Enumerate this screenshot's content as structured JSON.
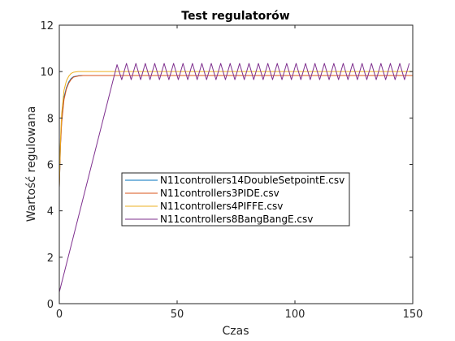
{
  "chart_data": {
    "type": "line",
    "title": "Test regulatorów",
    "xlabel": "Czas",
    "ylabel": "Wartość regulowana",
    "xlim": [
      0,
      150
    ],
    "ylim": [
      0,
      12
    ],
    "xticks": [
      "0",
      "50",
      "100",
      "150"
    ],
    "yticks": [
      "0",
      "2",
      "4",
      "6",
      "8",
      "10",
      "12"
    ],
    "grid": false,
    "legend_position": "center",
    "series": [
      {
        "name": "N11controllers14DoubleSetpointE.csv",
        "color": "#0072BD",
        "points": [
          [
            0,
            5.0
          ],
          [
            0.5,
            6.9
          ],
          [
            1,
            7.9
          ],
          [
            2,
            8.9
          ],
          [
            3,
            9.3
          ],
          [
            4,
            9.55
          ],
          [
            5,
            9.7
          ],
          [
            6,
            9.78
          ],
          [
            8,
            9.82
          ],
          [
            10,
            9.83
          ],
          [
            150,
            9.83
          ]
        ]
      },
      {
        "name": "N11controllers3PIDE.csv",
        "color": "#D95319",
        "points": [
          [
            0,
            5.0
          ],
          [
            0.5,
            6.8
          ],
          [
            1,
            7.8
          ],
          [
            2,
            8.8
          ],
          [
            3,
            9.25
          ],
          [
            4,
            9.5
          ],
          [
            5,
            9.66
          ],
          [
            6,
            9.76
          ],
          [
            8,
            9.81
          ],
          [
            10,
            9.83
          ],
          [
            150,
            9.83
          ]
        ]
      },
      {
        "name": "N11controllers4PIFFE.csv",
        "color": "#EDB120",
        "points": [
          [
            0,
            5.0
          ],
          [
            0.5,
            7.1
          ],
          [
            1,
            8.2
          ],
          [
            2,
            9.2
          ],
          [
            3,
            9.6
          ],
          [
            4,
            9.8
          ],
          [
            5,
            9.92
          ],
          [
            6,
            9.97
          ],
          [
            8,
            10.0
          ],
          [
            10,
            10.0
          ],
          [
            150,
            10.0
          ]
        ]
      },
      {
        "name": "N11controllers8BangBangE.csv",
        "color": "#7E2F8E",
        "ramp": [
          [
            0,
            0.5
          ],
          [
            24.5,
            10.3
          ]
        ],
        "oscillation": {
          "start": 24.5,
          "end": 150,
          "period": 4.0,
          "low": 9.65,
          "high": 10.35
        }
      }
    ]
  }
}
